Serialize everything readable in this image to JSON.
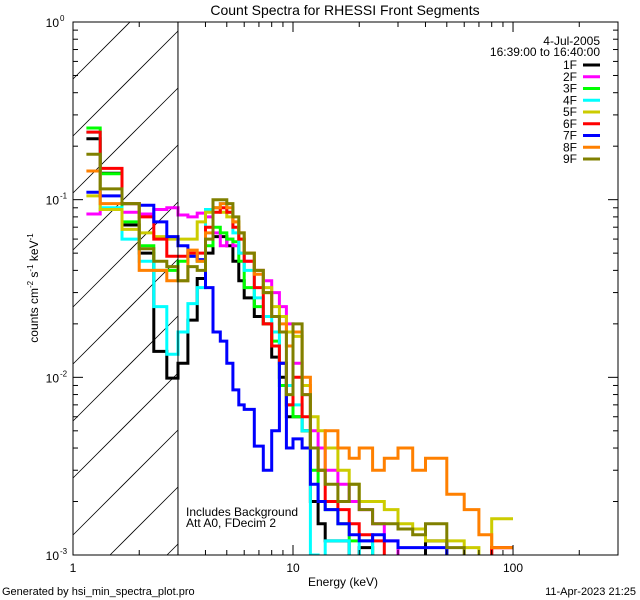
{
  "chart_data": {
    "type": "line",
    "title": "Count Spectra for RHESSI Front Segments",
    "xlabel": "Energy (keV)",
    "ylabel": "counts cm",
    "ylabel_parts": [
      "counts cm",
      "-2",
      " s",
      "-1",
      " keV",
      "-1"
    ],
    "xscale": "log",
    "yscale": "log",
    "xlim": [
      1,
      300
    ],
    "ylim": [
      0.001,
      1
    ],
    "x_ticks": [
      {
        "value": 1,
        "label": "1"
      },
      {
        "value": 10,
        "label": "10"
      },
      {
        "value": 100,
        "label": "100"
      }
    ],
    "y_ticks": [
      {
        "value": 1,
        "base": "10",
        "exp": "0"
      },
      {
        "value": 0.1,
        "base": "10",
        "exp": "-1"
      },
      {
        "value": 0.01,
        "base": "10",
        "exp": "-2"
      },
      {
        "value": 0.001,
        "base": "10",
        "exp": "-3"
      }
    ],
    "grid": false,
    "legend_position": "top-right",
    "legend_header": [
      "4-Jul-2005",
      "16:39:00 to 16:40:00"
    ],
    "shaded_region": {
      "xmin": 1,
      "xmax": 3,
      "style": "diagonal-hatch"
    },
    "annotations": [
      "Includes Background",
      "Att A0, FDecim 2"
    ],
    "energy_edges": [
      1.15,
      1.33,
      1.67,
      2,
      2.33,
      2.67,
      3,
      3.33,
      3.67,
      4,
      4.33,
      4.67,
      5,
      5.33,
      5.67,
      6,
      6.67,
      7.33,
      8,
      8.67,
      9.33,
      10,
      11,
      12,
      13,
      14,
      16,
      18,
      20,
      23,
      26,
      30,
      35,
      40,
      50,
      60,
      70,
      80,
      100
    ],
    "series": [
      {
        "name": "1F",
        "color": "#000000",
        "values": [
          0.22,
          0.141,
          0.072,
          0.05,
          0.014,
          0.0099,
          0.012,
          0.021,
          0.036,
          0.05,
          0.062,
          0.062,
          0.055,
          0.045,
          0.035,
          0.028,
          0.022,
          0.02,
          0.013,
          0.01,
          0.006,
          0.006,
          0.005,
          0.002,
          0.0015,
          0.0012,
          0.0012,
          null,
          0.0011,
          null,
          null,
          null,
          null,
          0.0012,
          null,
          null,
          null,
          null
        ]
      },
      {
        "name": "2F",
        "color": "#ff00ff",
        "values": [
          0.083,
          0.088,
          0.085,
          0.083,
          0.088,
          0.09,
          0.082,
          0.08,
          0.084,
          0.08,
          0.065,
          0.055,
          0.06,
          0.055,
          0.05,
          0.045,
          0.04,
          0.035,
          0.03,
          0.025,
          0.02,
          0.012,
          0.008,
          0.005,
          0.004,
          0.003,
          0.0025,
          0.002,
          0.0018,
          0.0015,
          0.0012,
          null,
          null,
          null,
          null,
          null,
          null,
          0.0011
        ]
      },
      {
        "name": "3F",
        "color": "#00ff00",
        "values": [
          0.253,
          0.14,
          0.075,
          0.055,
          0.04,
          0.04,
          0.045,
          0.048,
          0.045,
          0.055,
          0.07,
          0.065,
          0.06,
          0.058,
          0.045,
          0.032,
          0.025,
          0.02,
          0.016,
          0.009,
          0.007,
          0.006,
          0.005,
          0.003,
          0.002,
          0.0018,
          0.0015,
          0.0012,
          0.0012,
          null,
          null,
          null,
          null,
          null,
          null,
          null,
          null,
          null
        ]
      },
      {
        "name": "4F",
        "color": "#00ffff",
        "values": [
          0.24,
          0.09,
          0.06,
          0.045,
          0.025,
          0.0135,
          0.018,
          0.026,
          0.032,
          0.088,
          0.09,
          0.095,
          0.085,
          0.065,
          0.05,
          0.04,
          0.028,
          0.022,
          0.018,
          0.012,
          0.009,
          0.007,
          0.005,
          0.001,
          null,
          0.0012,
          0.0012,
          null,
          0.0012,
          null,
          null,
          null,
          null,
          null,
          null,
          null,
          null,
          null
        ]
      },
      {
        "name": "5F",
        "color": "#cccc00",
        "values": [
          0.105,
          0.088,
          0.068,
          0.065,
          0.062,
          0.06,
          0.06,
          0.06,
          0.075,
          0.085,
          0.09,
          0.085,
          0.08,
          0.075,
          0.06,
          0.05,
          0.04,
          0.032,
          0.025,
          0.022,
          0.018,
          0.017,
          0.009,
          0.006,
          0.005,
          0.004,
          0.003,
          0.0025,
          0.002,
          0.002,
          0.0018,
          0.0015,
          0.0014,
          0.0012,
          0.0012,
          0.0011,
          null,
          0.0016
        ]
      },
      {
        "name": "6F",
        "color": "#ff0000",
        "values": [
          0.24,
          0.15,
          0.095,
          0.08,
          0.06,
          0.048,
          0.048,
          0.05,
          0.05,
          0.07,
          0.085,
          0.09,
          0.085,
          0.07,
          0.06,
          0.045,
          0.032,
          0.02,
          0.015,
          0.012,
          0.007,
          0.01,
          0.006,
          0.004,
          0.003,
          0.002,
          0.0018,
          0.0015,
          0.0013,
          0.0012,
          null,
          null,
          null,
          null,
          null,
          null,
          null,
          0.0011
        ]
      },
      {
        "name": "7F",
        "color": "#0000ff",
        "values": [
          0.11,
          0.105,
          0.095,
          0.093,
          0.075,
          0.062,
          0.055,
          0.048,
          0.046,
          0.032,
          0.018,
          0.016,
          0.012,
          0.0085,
          0.007,
          0.0066,
          0.0041,
          0.003,
          0.005,
          0.012,
          0.004,
          0.0045,
          0.004,
          0.0025,
          0.002,
          0.0018,
          0.0015,
          0.0013,
          0.0012,
          0.0013,
          0.0012,
          0.0011,
          0.0011,
          0.0011,
          null,
          null,
          null,
          null
        ]
      },
      {
        "name": "8F",
        "color": "#ff8000",
        "values": [
          0.145,
          0.095,
          0.095,
          0.04,
          0.04,
          0.035,
          0.035,
          0.052,
          0.045,
          0.065,
          0.09,
          0.095,
          0.09,
          0.075,
          0.065,
          0.05,
          0.038,
          0.03,
          0.022,
          0.02,
          0.015,
          0.018,
          0.01,
          0.004,
          0.003,
          0.005,
          0.004,
          0.0035,
          0.004,
          0.003,
          0.0035,
          0.004,
          0.003,
          0.0035,
          0.0022,
          0.0018,
          0.0013,
          0.0011
        ]
      },
      {
        "name": "9F",
        "color": "#808000",
        "values": [
          0.18,
          0.115,
          0.095,
          0.053,
          0.045,
          0.042,
          0.035,
          0.042,
          0.04,
          0.06,
          0.1,
          0.1,
          0.095,
          0.08,
          0.065,
          0.05,
          0.04,
          0.03,
          0.022,
          0.018,
          0.008,
          0.02,
          0.008,
          0.004,
          0.003,
          0.0025,
          0.002,
          0.0025,
          0.0018,
          0.0015,
          0.0015,
          0.0014,
          0.0013,
          0.0015,
          0.0011,
          null,
          null,
          null
        ]
      }
    ]
  },
  "footer": {
    "generated_by": "Generated by hsi_min_spectra_plot.pro",
    "timestamp": "11-Apr-2023 21:25"
  }
}
